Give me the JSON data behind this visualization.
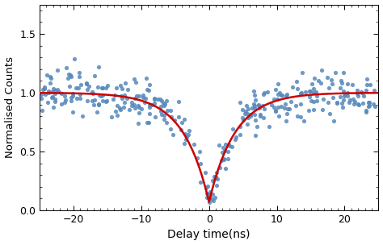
{
  "xlabel": "Delay time(ns)",
  "ylabel": "Normalised Counts",
  "xlim": [
    -25,
    25
  ],
  "ylim": [
    0.0,
    1.75
  ],
  "yticks": [
    0.0,
    0.5,
    1.0,
    1.5
  ],
  "xticks": [
    -20,
    -10,
    0,
    10,
    20
  ],
  "dot_color": "#5588bb",
  "curve_color": "#cc0000",
  "curve_linewidth": 1.8,
  "dot_size": 14,
  "dot_alpha": 0.85,
  "seed": 42,
  "n_points": 350,
  "tau0": 3.8,
  "g2_zero": 0.07,
  "noise_std": 0.095,
  "figsize": [
    4.74,
    3.04
  ],
  "dpi": 100
}
